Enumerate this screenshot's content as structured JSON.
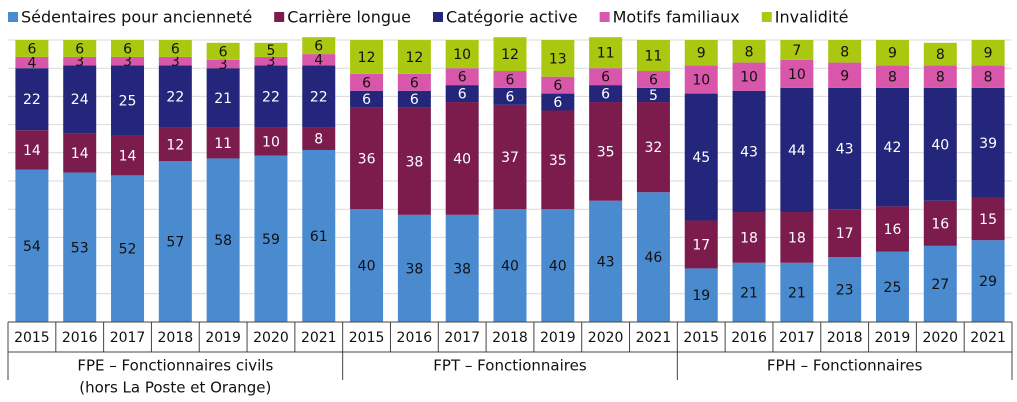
{
  "chart_data": {
    "type": "bar",
    "stacked": true,
    "categories": [
      "2015",
      "2016",
      "2017",
      "2018",
      "2019",
      "2020",
      "2021",
      "2015",
      "2016",
      "2017",
      "2018",
      "2019",
      "2020",
      "2021",
      "2015",
      "2016",
      "2017",
      "2018",
      "2019",
      "2020",
      "2021"
    ],
    "groups": [
      {
        "label": [
          "FPE – Fonctionnaires civils",
          "(hors La Poste et Orange)"
        ]
      },
      {
        "label": [
          "FPT – Fonctionnaires"
        ]
      },
      {
        "label": [
          "FPH – Fonctionnaires"
        ]
      }
    ],
    "series": [
      {
        "name": "Sédentaires pour ancienneté",
        "color": "#4a8bd0",
        "label_color": "#111",
        "values": [
          54,
          53,
          52,
          57,
          58,
          59,
          61,
          40,
          38,
          38,
          40,
          40,
          43,
          46,
          19,
          21,
          21,
          23,
          25,
          27,
          29
        ]
      },
      {
        "name": "Carrière longue",
        "color": "#7b1c4c",
        "label_color": "#fff",
        "values": [
          14,
          14,
          14,
          12,
          11,
          10,
          8,
          36,
          38,
          40,
          37,
          35,
          35,
          32,
          17,
          18,
          18,
          17,
          16,
          16,
          15
        ]
      },
      {
        "name": "Catégorie active",
        "color": "#23267a",
        "label_color": "#fff",
        "values": [
          22,
          24,
          25,
          22,
          21,
          22,
          22,
          6,
          6,
          6,
          6,
          6,
          6,
          5,
          45,
          43,
          44,
          43,
          42,
          40,
          39
        ]
      },
      {
        "name": "Motifs familiaux",
        "color": "#d957aa",
        "label_color": "#111",
        "values": [
          4,
          3,
          3,
          3,
          3,
          3,
          4,
          6,
          6,
          6,
          6,
          6,
          6,
          6,
          10,
          10,
          10,
          9,
          8,
          8,
          8
        ]
      },
      {
        "name": "Invalidité",
        "color": "#a9c80f",
        "label_color": "#111",
        "values": [
          6,
          6,
          6,
          6,
          6,
          5,
          6,
          12,
          12,
          10,
          12,
          13,
          11,
          11,
          9,
          8,
          7,
          8,
          9,
          8,
          9
        ]
      }
    ],
    "ylim": [
      0,
      100
    ],
    "yticks": [
      0,
      10,
      20,
      30,
      40,
      50,
      60,
      70,
      80,
      90,
      100
    ],
    "grid": true,
    "legend": "top"
  }
}
